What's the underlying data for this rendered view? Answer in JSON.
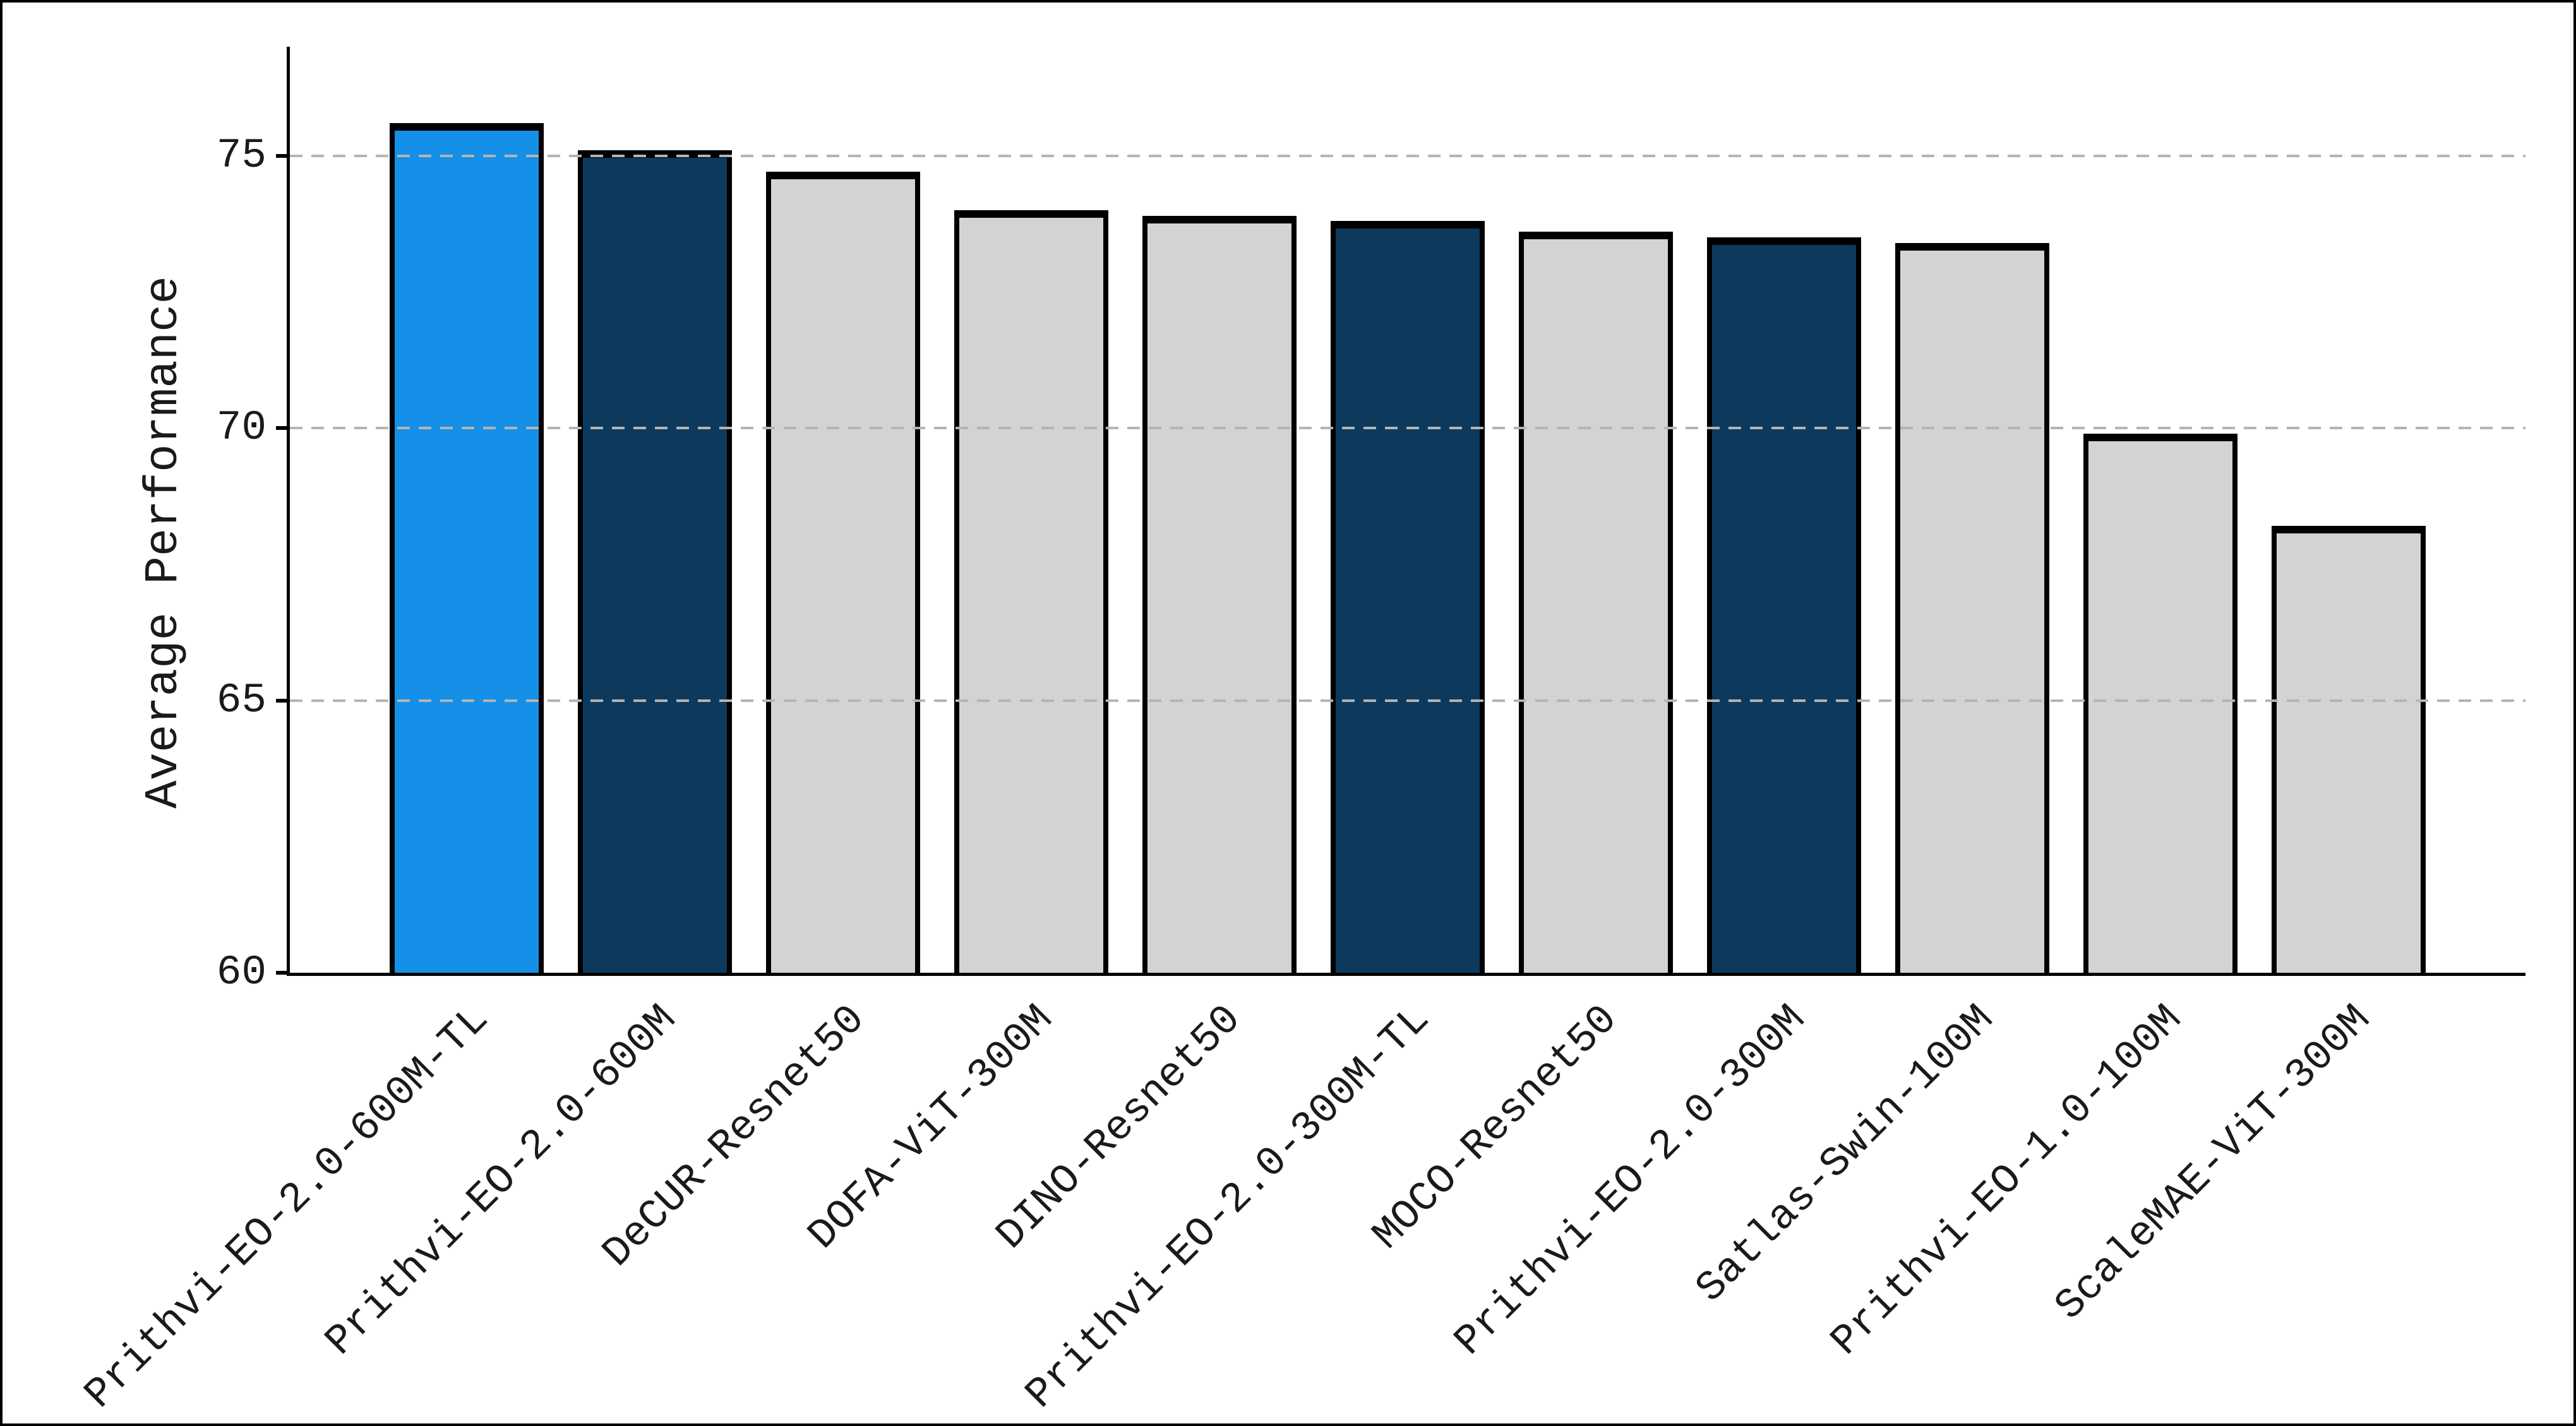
{
  "chart_data": {
    "type": "bar",
    "title": "",
    "xlabel": "",
    "ylabel": "Average Performance",
    "ylim": [
      60,
      77
    ],
    "yticks": [
      60,
      65,
      70,
      75
    ],
    "grid": "horizontal dashed gridlines at 65, 70, 75",
    "legend_position": "none",
    "categories": [
      "Prithvi-EO-2.0-600M-TL",
      "Prithvi-EO-2.0-600M",
      "DeCUR-Resnet50",
      "DOFA-ViT-300M",
      "DINO-Resnet50",
      "Prithvi-EO-2.0-300M-TL",
      "MOCO-Resnet50",
      "Prithvi-EO-2.0-300M",
      "Satlas-Swin-100M",
      "Prithvi-EO-1.0-100M",
      "ScaleMAE-ViT-300M"
    ],
    "values": [
      75.6,
      75.1,
      74.7,
      74.0,
      73.9,
      73.8,
      73.6,
      73.5,
      73.4,
      69.9,
      68.2
    ],
    "bar_colors": [
      "#1490E8",
      "#0D3A5C",
      "#D3D3D3",
      "#D3D3D3",
      "#D3D3D3",
      "#0D3A5C",
      "#D3D3D3",
      "#0D3A5C",
      "#D3D3D3",
      "#D3D3D3",
      "#D3D3D3"
    ],
    "bar_edge_color": "#000000"
  },
  "colors": {
    "highlight_blue": "#1490E8",
    "prithvi_navy": "#0D3A5C",
    "baseline_gray": "#D3D3D3",
    "gridline_gray": "#B4B4B4",
    "axis_black": "#000000",
    "text": "#1A1A1A",
    "background": "#FFFFFF"
  }
}
